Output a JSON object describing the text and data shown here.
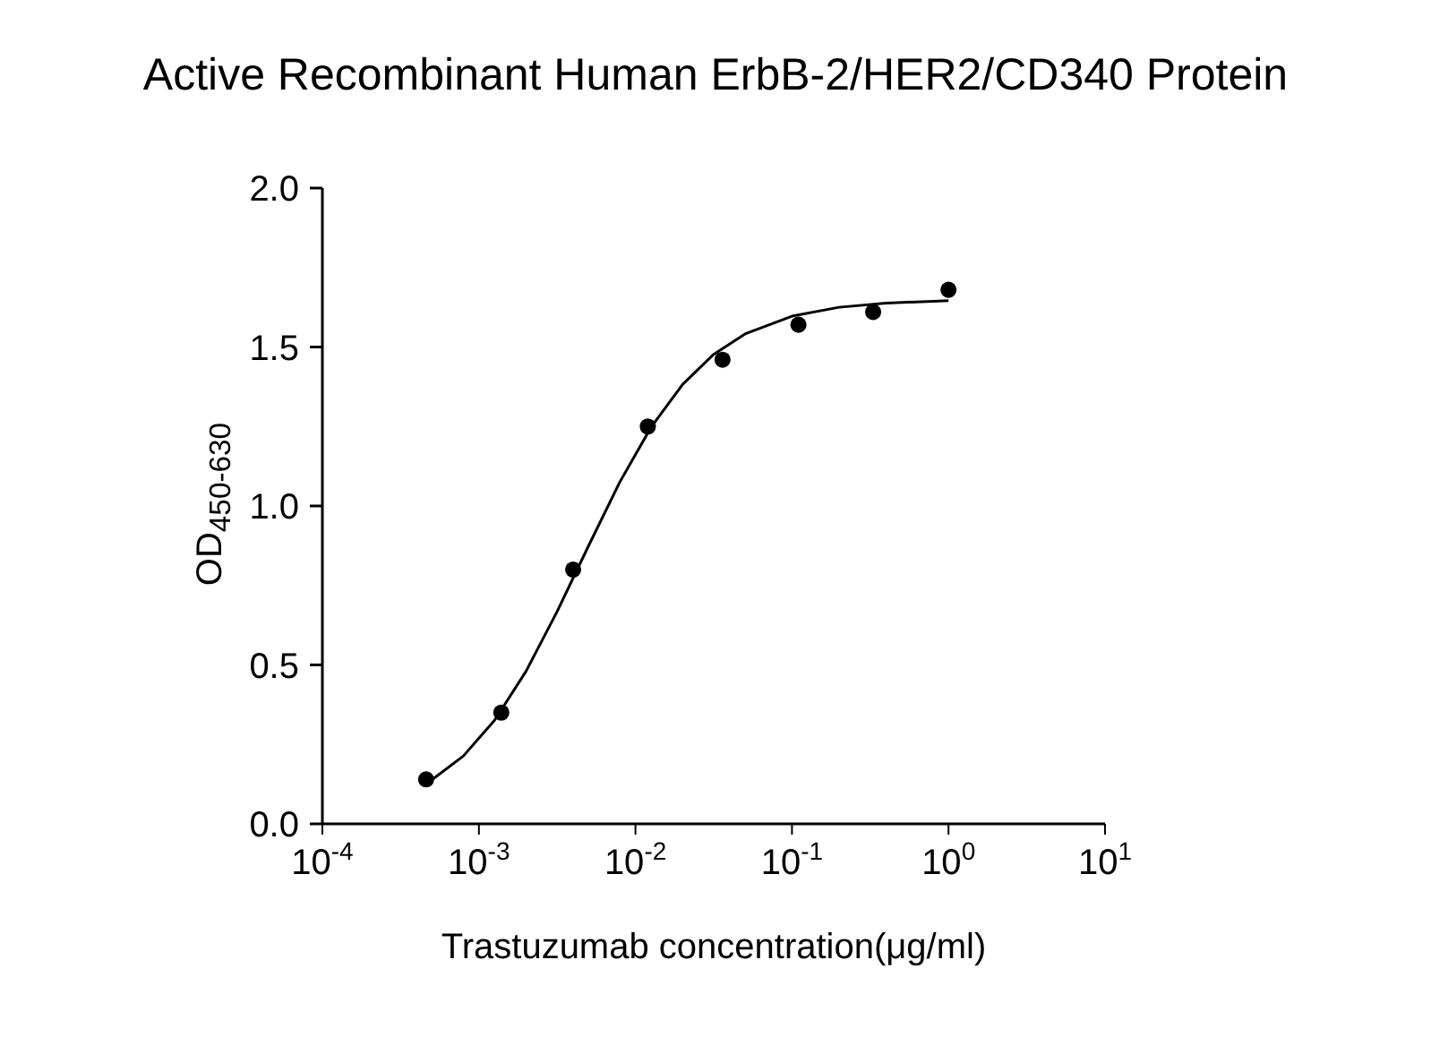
{
  "chart_data": {
    "type": "scatter",
    "title": "Active Recombinant Human ErbB-2/HER2/CD340 Protein",
    "xlabel": "Trastuzumab concentration(μg/ml)",
    "ylabel": "OD$_{450-630}$",
    "log": "x",
    "xlim": [
      0.0001,
      10
    ],
    "ylim": [
      0,
      2
    ],
    "xticks": [
      {
        "value": 0.0001,
        "label": "10$^{-4}$"
      },
      {
        "value": 0.001,
        "label": "10$^{-3}$"
      },
      {
        "value": 0.01,
        "label": "10$^{-2}$"
      },
      {
        "value": 0.1,
        "label": "10$^{-1}$"
      },
      {
        "value": 1,
        "label": "10$^{0}$"
      },
      {
        "value": 10,
        "label": "10$^{1}$"
      }
    ],
    "yticks": [
      {
        "value": 0,
        "label": "0.0"
      },
      {
        "value": 0.5,
        "label": "0.5"
      },
      {
        "value": 1,
        "label": "1.0"
      },
      {
        "value": 1.5,
        "label": "1.5"
      },
      {
        "value": 2,
        "label": "2.0"
      }
    ],
    "series": [
      {
        "color": "#000000",
        "marker": "circle",
        "x": [
          0.00046,
          0.00139,
          0.004,
          0.012,
          0.036,
          0.11,
          0.33,
          1
        ],
        "values": [
          0.14,
          0.35,
          0.8,
          1.25,
          1.46,
          1.57,
          1.61,
          1.68
        ]
      },
      {
        "type": "line",
        "color": "#000000",
        "marker": "none",
        "line_style": "solid",
        "x": [
          0.000457,
          0.000794,
          0.00126,
          0.002,
          0.00316,
          0.00501,
          0.00794,
          0.0126,
          0.02,
          0.0316,
          0.0501,
          0.1,
          0.2,
          0.398,
          1
        ],
        "values": [
          0.124,
          0.213,
          0.326,
          0.48,
          0.668,
          0.874,
          1.075,
          1.248,
          1.382,
          1.477,
          1.541,
          1.597,
          1.625,
          1.638,
          1.646
        ]
      }
    ]
  }
}
